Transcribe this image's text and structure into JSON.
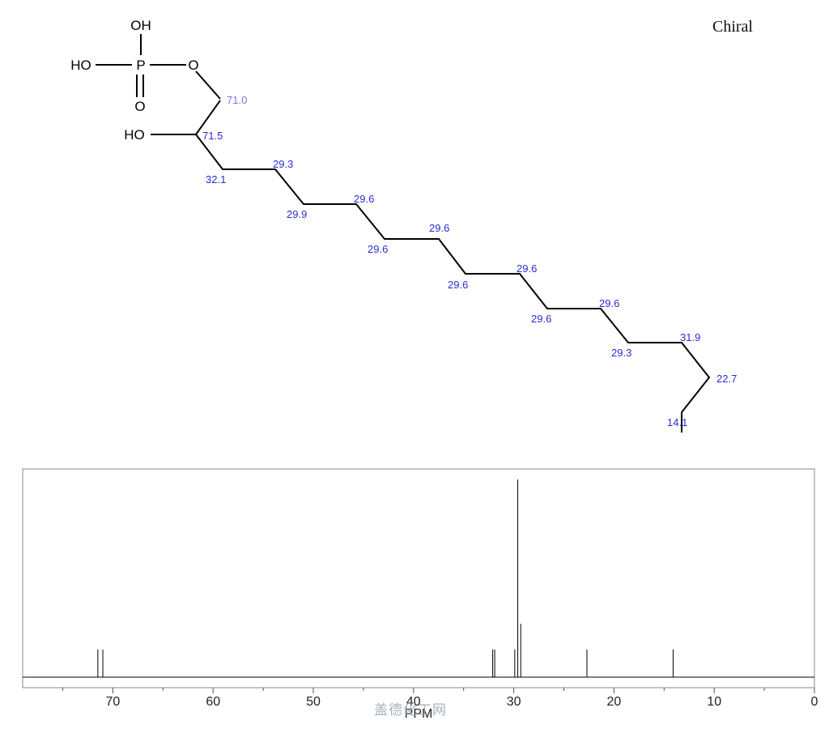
{
  "chiral_label": "Chiral",
  "watermark": "盖德化工网",
  "molecule": {
    "atom_labels": {
      "oh_top": "OH",
      "ho_left": "HO",
      "p": "P",
      "o_ester": "O",
      "o_double": "O",
      "ho_chain": "HO"
    },
    "shifts": [
      "71.0",
      "71.5",
      "32.1",
      "29.3",
      "29.9",
      "29.6",
      "29.6",
      "29.6",
      "29.6",
      "29.6",
      "29.6",
      "29.6",
      "29.3",
      "31.9",
      "22.7",
      "14.1"
    ]
  },
  "chart_data": {
    "type": "nmr-spectrum",
    "xlabel": "PPM",
    "xlim": [
      79,
      0
    ],
    "x_ticks": [
      "70",
      "60",
      "50",
      "40",
      "30",
      "20",
      "10",
      "0"
    ],
    "x_tick_values": [
      70,
      60,
      50,
      40,
      30,
      20,
      10,
      0
    ],
    "peaks": [
      {
        "x": 71.5,
        "intensity": 0.14
      },
      {
        "x": 71.0,
        "intensity": 0.14
      },
      {
        "x": 32.1,
        "intensity": 0.14
      },
      {
        "x": 31.9,
        "intensity": 0.14
      },
      {
        "x": 29.9,
        "intensity": 0.14
      },
      {
        "x": 29.6,
        "intensity": 1.0
      },
      {
        "x": 29.3,
        "intensity": 0.27
      },
      {
        "x": 22.7,
        "intensity": 0.14
      },
      {
        "x": 14.1,
        "intensity": 0.14
      }
    ],
    "colors": {
      "shift_label": "#2b2bd0",
      "line": "#000000",
      "frame": "#888888"
    }
  }
}
